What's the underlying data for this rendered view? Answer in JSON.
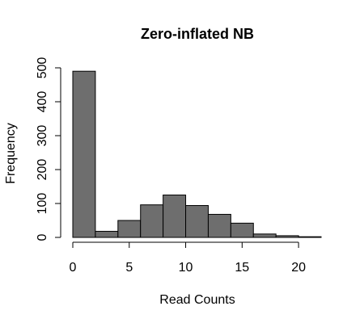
{
  "chart_data": {
    "type": "bar",
    "title": "Zero-inflated NB",
    "xlabel": "Read Counts",
    "ylabel": "Frequency",
    "bins": [
      {
        "x0": 0,
        "x1": 2,
        "value": 490
      },
      {
        "x0": 2,
        "x1": 4,
        "value": 18
      },
      {
        "x0": 4,
        "x1": 6,
        "value": 50
      },
      {
        "x0": 6,
        "x1": 8,
        "value": 96
      },
      {
        "x0": 8,
        "x1": 10,
        "value": 125
      },
      {
        "x0": 10,
        "x1": 12,
        "value": 94
      },
      {
        "x0": 12,
        "x1": 14,
        "value": 68
      },
      {
        "x0": 14,
        "x1": 16,
        "value": 42
      },
      {
        "x0": 16,
        "x1": 18,
        "value": 10
      },
      {
        "x0": 18,
        "x1": 20,
        "value": 5
      },
      {
        "x0": 20,
        "x1": 22,
        "value": 2
      }
    ],
    "xlim": [
      0,
      22
    ],
    "ylim": [
      0,
      500
    ],
    "x_ticks": [
      0,
      5,
      10,
      15,
      20
    ],
    "y_ticks": [
      0,
      100,
      200,
      300,
      400,
      500
    ],
    "x_tick_labels": [
      "0",
      "5",
      "10",
      "15",
      "20"
    ],
    "y_tick_labels": [
      "0",
      "100",
      "200",
      "300",
      "400",
      "500"
    ],
    "bar_color": "#6e6e6e",
    "grid": false,
    "legend": "none"
  }
}
